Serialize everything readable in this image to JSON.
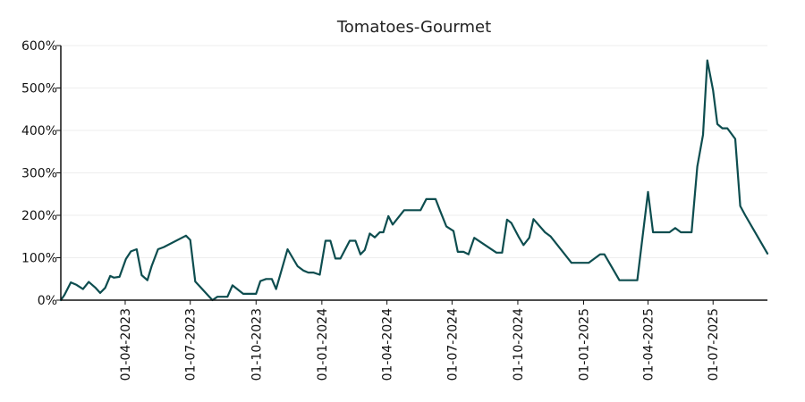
{
  "chart_data": {
    "type": "line",
    "title": "Tomatoes-Gourmet",
    "xlabel": "",
    "ylabel": "",
    "x_range": [
      "2023-01-01",
      "2025-09-15"
    ],
    "ylim": [
      0,
      600
    ],
    "y_ticks": [
      0,
      100,
      200,
      300,
      400,
      500,
      600
    ],
    "y_tick_labels": [
      "0%",
      "100%",
      "200%",
      "300%",
      "400%",
      "500%",
      "600%"
    ],
    "x_ticks": [
      "2023-04-01",
      "2023-07-01",
      "2023-10-01",
      "2024-01-01",
      "2024-04-01",
      "2024-07-01",
      "2024-10-01",
      "2025-01-01",
      "2025-04-01",
      "2025-07-01"
    ],
    "x_tick_labels": [
      "01-04-2023",
      "01-07-2023",
      "01-10-2023",
      "01-01-2024",
      "01-04-2024",
      "01-07-2024",
      "01-10-2024",
      "01-01-2025",
      "01-04-2025",
      "01-07-2025"
    ],
    "grid": "horizontal",
    "legend": "none",
    "line_color": "#0d4d4f",
    "series": [
      {
        "x": [
          "2023-01-01",
          "2023-01-06",
          "2023-01-15",
          "2023-01-23",
          "2023-02-01",
          "2023-02-09",
          "2023-02-18",
          "2023-02-25",
          "2023-03-04",
          "2023-03-11",
          "2023-03-16",
          "2023-03-24",
          "2023-04-02",
          "2023-04-09",
          "2023-04-17",
          "2023-04-24",
          "2023-05-02",
          "2023-05-08",
          "2023-05-17",
          "2023-05-25",
          "2023-06-25",
          "2023-07-01",
          "2023-07-08",
          "2023-08-01",
          "2023-08-08",
          "2023-08-22",
          "2023-08-29",
          "2023-09-13",
          "2023-09-27",
          "2023-10-01",
          "2023-10-07",
          "2023-10-15",
          "2023-10-23",
          "2023-10-29",
          "2023-11-14",
          "2023-11-28",
          "2023-12-06",
          "2023-12-13",
          "2023-12-20",
          "2023-12-29",
          "2024-01-06",
          "2024-01-13",
          "2024-01-20",
          "2024-01-27",
          "2024-02-09",
          "2024-02-17",
          "2024-02-24",
          "2024-03-01",
          "2024-03-08",
          "2024-03-15",
          "2024-03-22",
          "2024-03-27",
          "2024-04-03",
          "2024-04-09",
          "2024-04-25",
          "2024-05-18",
          "2024-05-26",
          "2024-06-08",
          "2024-06-14",
          "2024-06-23",
          "2024-07-03",
          "2024-07-09",
          "2024-07-17",
          "2024-07-24",
          "2024-08-01",
          "2024-09-01",
          "2024-09-09",
          "2024-09-16",
          "2024-09-22",
          "2024-10-02",
          "2024-10-09",
          "2024-10-17",
          "2024-10-23",
          "2024-11-08",
          "2024-11-16",
          "2024-12-15",
          "2024-12-23",
          "2025-01-02",
          "2025-01-08",
          "2025-01-24",
          "2025-01-30",
          "2025-02-20",
          "2025-03-03",
          "2025-03-10",
          "2025-03-17",
          "2025-04-01",
          "2025-04-08",
          "2025-04-16",
          "2025-05-01",
          "2025-05-09",
          "2025-05-17",
          "2025-05-24",
          "2025-06-01",
          "2025-06-09",
          "2025-06-17",
          "2025-06-23",
          "2025-07-01",
          "2025-07-07",
          "2025-07-14",
          "2025-07-21",
          "2025-08-01",
          "2025-08-08",
          "2025-08-15",
          "2025-09-15"
        ],
        "y": [
          0,
          12,
          42,
          36,
          26,
          43,
          30,
          17,
          29,
          57,
          53,
          55,
          97,
          115,
          120,
          59,
          47,
          80,
          120,
          125,
          152,
          142,
          44,
          0,
          8,
          8,
          35,
          15,
          15,
          15,
          45,
          50,
          50,
          26,
          120,
          80,
          70,
          65,
          65,
          60,
          140,
          140,
          98,
          98,
          140,
          140,
          108,
          118,
          157,
          148,
          160,
          160,
          198,
          178,
          212,
          212,
          238,
          238,
          212,
          174,
          163,
          114,
          114,
          108,
          147,
          112,
          112,
          190,
          182,
          150,
          130,
          147,
          191,
          160,
          150,
          88,
          88,
          88,
          88,
          108,
          108,
          47,
          47,
          47,
          47,
          255,
          160,
          160,
          160,
          170,
          160,
          160,
          160,
          315,
          390,
          565,
          495,
          415,
          405,
          405,
          380,
          222,
          200,
          110
        ]
      }
    ]
  }
}
